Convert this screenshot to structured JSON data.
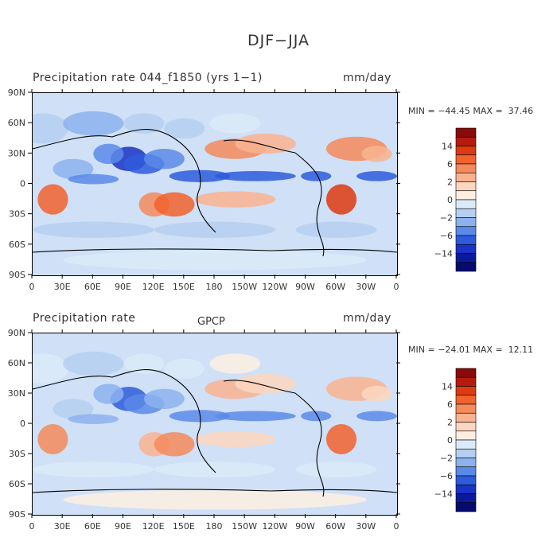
{
  "title": "DJF−JJA",
  "panels": [
    {
      "title": "Precipitation rate  044_f1850 (yrs 1−1)",
      "center_label": "",
      "units": "mm/day",
      "min_label": "MIN =",
      "min": "−44.45",
      "max_label": "MAX =",
      "max": "37.46"
    },
    {
      "title": "Precipitation rate",
      "center_label": "GPCP",
      "units": "mm/day",
      "min_label": "MIN =",
      "min": "−24.01",
      "max_label": "MAX =",
      "max": "12.11"
    }
  ],
  "chart_data": [
    {
      "type": "heatmap",
      "title": "Precipitation rate  044_f1850 (yrs 1-1)",
      "units": "mm/day",
      "xlim": [
        0,
        360
      ],
      "ylim": [
        -90,
        90
      ],
      "x_ticks": [
        "0",
        "30E",
        "60E",
        "90E",
        "120E",
        "150E",
        "180",
        "150W",
        "120W",
        "90W",
        "60W",
        "30W",
        "0"
      ],
      "y_ticks": [
        "90N",
        "60N",
        "30N",
        "0",
        "30S",
        "60S",
        "90S"
      ],
      "colorbar_labels": [
        "14",
        "6",
        "2",
        "0",
        "−2",
        "−6",
        "−14"
      ],
      "min": -44.45,
      "max": 37.46
    },
    {
      "type": "heatmap",
      "title": "Precipitation rate",
      "subtitle": "GPCP",
      "units": "mm/day",
      "xlim": [
        0,
        360
      ],
      "ylim": [
        -90,
        90
      ],
      "x_ticks": [
        "0",
        "30E",
        "60E",
        "90E",
        "120E",
        "150E",
        "180",
        "150W",
        "120W",
        "90W",
        "60W",
        "30W",
        "0"
      ],
      "y_ticks": [
        "90N",
        "60N",
        "30N",
        "0",
        "30S",
        "60S",
        "90S"
      ],
      "colorbar_labels": [
        "14",
        "6",
        "2",
        "0",
        "−2",
        "−6",
        "−14"
      ],
      "min": -24.01,
      "max": 12.11
    }
  ],
  "colorbar_colors": [
    "#8a0a0a",
    "#b51b0c",
    "#de3a12",
    "#f2622d",
    "#f58a5c",
    "#f9b391",
    "#fcd6bf",
    "#fdeee2",
    "#dbeaf8",
    "#b5cff1",
    "#8cb2ee",
    "#5a8ae8",
    "#2e5bdc",
    "#1a33c4",
    "#0a1a9a",
    "#050a70"
  ]
}
